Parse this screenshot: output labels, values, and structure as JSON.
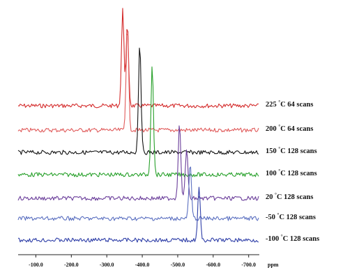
{
  "chart_data": {
    "type": "line",
    "title": "",
    "xlabel": "ppm",
    "ylabel": "",
    "x_reversed": true,
    "xlim": [
      -50,
      -730
    ],
    "x_ticks": [
      -100,
      -200,
      -300,
      -400,
      -500,
      -600,
      -700
    ],
    "x_tick_labels": [
      "-100.0",
      "-200.0",
      "-300.0",
      "-400.0",
      "-500.0",
      "-600.0",
      "-700.0"
    ],
    "grid": false,
    "legend": "none",
    "stacked_offset": true,
    "series": [
      {
        "name": "225 °C 64 scans",
        "label_parts": [
          "225 ",
          "°",
          "C 64 scans"
        ],
        "color": "#d42a2a",
        "peaks": [
          {
            "x": -345,
            "height": 138
          },
          {
            "x": -358,
            "height": 115
          }
        ]
      },
      {
        "name": "200 °C 64 scans",
        "label_parts": [
          "200 ",
          "°",
          "C 64 scans"
        ],
        "color": "#e05a5a",
        "peaks": [
          {
            "x": -358,
            "height": 150
          }
        ]
      },
      {
        "name": "150 °C 128 scans",
        "label_parts": [
          "150 ",
          "°",
          "C 128 scans"
        ],
        "color": "#111111",
        "peaks": [
          {
            "x": -393,
            "height": 158
          }
        ]
      },
      {
        "name": "100 °C 128 scans",
        "label_parts": [
          "100 ",
          "°",
          "C 128 scans"
        ],
        "color": "#27a02a",
        "peaks": [
          {
            "x": -428,
            "height": 160
          }
        ]
      },
      {
        "name": "20 °C 128 scans",
        "label_parts": [
          "20 ",
          "°",
          "C 128 scans"
        ],
        "color": "#6a3d9a",
        "peaks": [
          {
            "x": -505,
            "height": 110
          },
          {
            "x": -525,
            "height": 72
          }
        ]
      },
      {
        "name": "-50 °C 128 scans",
        "label_parts": [
          "-50 ",
          "°",
          "C 128 scans"
        ],
        "color": "#5a6fc0",
        "peaks": [
          {
            "x": -535,
            "height": 78
          }
        ]
      },
      {
        "name": "-100 °C 128 scans",
        "label_parts": [
          "-100 ",
          "°",
          "C 128 scans"
        ],
        "color": "#2f3fa8",
        "peaks": [
          {
            "x": -560,
            "height": 75
          }
        ]
      }
    ]
  }
}
